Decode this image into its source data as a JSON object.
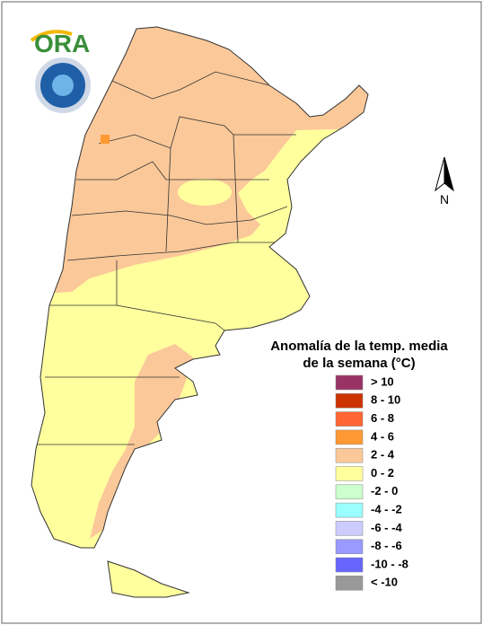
{
  "logo": {
    "text": "ORA"
  },
  "north_arrow": {
    "label": "N"
  },
  "legend": {
    "title": [
      "Anomalía de la temp. media",
      "de la semana (°C)"
    ],
    "items": [
      {
        "label": "> 10",
        "color": "#993366"
      },
      {
        "label": "8 - 10",
        "color": "#cc3300"
      },
      {
        "label": "6 - 8",
        "color": "#ff6633"
      },
      {
        "label": "4 - 6",
        "color": "#ff9933"
      },
      {
        "label": "2 - 4",
        "color": "#fbc899"
      },
      {
        "label": "0 - 2",
        "color": "#ffff9e"
      },
      {
        "label": "-2 - 0",
        "color": "#ccffcc"
      },
      {
        "label": "-4 - -2",
        "color": "#99ffff"
      },
      {
        "label": "-6 - -4",
        "color": "#ccccff"
      },
      {
        "label": "-8 - -6",
        "color": "#9999ff"
      },
      {
        "label": "-10 - -8",
        "color": "#6666ff"
      },
      {
        "label": "< -10",
        "color": "#999999"
      }
    ]
  }
}
